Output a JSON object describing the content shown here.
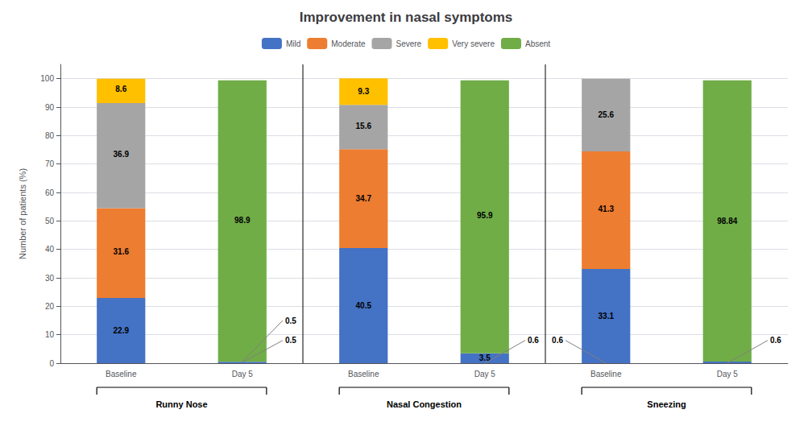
{
  "chart_data": {
    "type": "bar",
    "stacked": true,
    "title": "Improvement in nasal symptoms",
    "ylabel": "Number of patients (%)",
    "categories": [
      "Baseline",
      "Day 5",
      "Baseline",
      "Day 5",
      "Baseline",
      "Day 5"
    ],
    "series": [
      {
        "name": "Mild",
        "color": "#4472C4",
        "values": [
          22.9,
          0.5,
          40.5,
          3.5,
          33.1,
          0.6
        ]
      },
      {
        "name": "Moderate",
        "color": "#ED7D31",
        "values": [
          31.6,
          0.0,
          34.7,
          0.0,
          41.3,
          0.0
        ]
      },
      {
        "name": "Severe",
        "color": "#A5A5A5",
        "values": [
          36.9,
          0.0,
          15.6,
          0.0,
          25.6,
          0.0
        ]
      },
      {
        "name": "Very severe",
        "color": "#FFC000",
        "values": [
          8.6,
          0.0,
          9.3,
          0.0,
          0.0,
          0.0
        ]
      },
      {
        "name": "Absent",
        "color": "#70AD47",
        "values": [
          0.0,
          98.9,
          0.0,
          95.9,
          0.0,
          98.84
        ]
      }
    ],
    "ylim": [
      0,
      105
    ],
    "yticks": [
      0,
      10,
      20,
      30,
      40,
      50,
      60,
      70,
      80,
      90,
      100
    ],
    "grid": true,
    "legend": "top",
    "groups": [
      {
        "label": "Runny Nose",
        "bars": [
          0,
          1
        ]
      },
      {
        "label": "Nasal Congestion",
        "bars": [
          2,
          3
        ]
      },
      {
        "label": "Sneezing",
        "bars": [
          4,
          5
        ]
      }
    ],
    "annotations": [
      {
        "bar": 0,
        "text": "22.9",
        "y": 11.45
      },
      {
        "bar": 0,
        "text": "31.6",
        "y": 39.1
      },
      {
        "bar": 0,
        "text": "36.9",
        "y": 73.35
      },
      {
        "bar": 0,
        "text": "8.6",
        "y": 96.3
      },
      {
        "bar": 1,
        "text": "98.9",
        "y": 50.15
      },
      {
        "bar": 2,
        "text": "40.5",
        "y": 20.25
      },
      {
        "bar": 2,
        "text": "34.7",
        "y": 57.85
      },
      {
        "bar": 2,
        "text": "15.6",
        "y": 83.3
      },
      {
        "bar": 2,
        "text": "9.3",
        "y": 95.65
      },
      {
        "bar": 3,
        "text": "3.5",
        "y": 1.75
      },
      {
        "bar": 3,
        "text": "95.9",
        "y": 51.85
      },
      {
        "bar": 4,
        "text": "33.1",
        "y": 16.55
      },
      {
        "bar": 4,
        "text": "41.3",
        "y": 54.25
      },
      {
        "bar": 4,
        "text": "25.6",
        "y": 87.4
      },
      {
        "bar": 5,
        "text": "98.84",
        "y": 50.0
      }
    ],
    "leader_annotations": [
      {
        "bar": 1,
        "y": 0.25,
        "side": "right",
        "label_y": 8,
        "text": "0.5"
      },
      {
        "bar": 1,
        "y": 0.5,
        "side": "right",
        "label_y": 15,
        "text": "0.5"
      },
      {
        "bar": 3,
        "y": 0.0,
        "side": "right",
        "label_y": 8,
        "text": "0.6"
      },
      {
        "bar": 4,
        "y": 0.0,
        "side": "left",
        "label_y": 8,
        "text": "0.6"
      },
      {
        "bar": 5,
        "y": 0.0,
        "side": "right",
        "label_y": 8,
        "text": "0.6"
      }
    ]
  }
}
